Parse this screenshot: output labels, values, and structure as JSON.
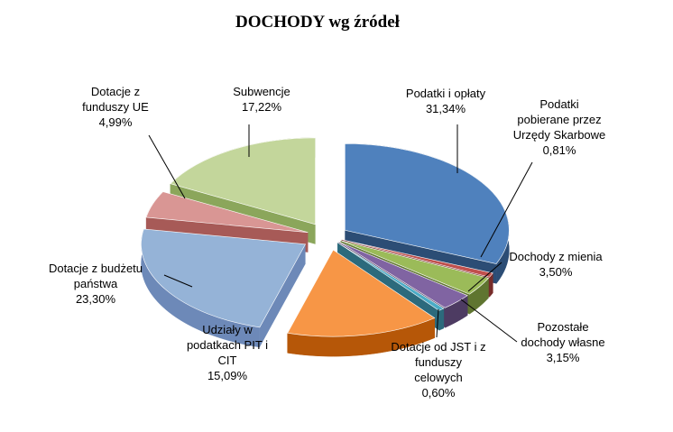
{
  "chart_data": {
    "type": "pie",
    "title": "DOCHODY wg źródeł",
    "categories": [
      "Podatki i opłaty",
      "Podatki pobierane przez Urzędy Skarbowe",
      "Dochody z mienia",
      "Pozostałe dochody własne",
      "Dotacje od JST i z funduszy celowych",
      "Udziały w podatkach PIT i CIT",
      "Dotacje z budżetu państwa",
      "Dotacje z funduszy UE",
      "Subwencje"
    ],
    "values": [
      31.34,
      0.81,
      3.5,
      3.15,
      0.6,
      15.09,
      23.3,
      4.99,
      17.22
    ],
    "value_labels": [
      "31,34%",
      "0,81%",
      "3,50%",
      "3,15%",
      "0,60%",
      "15,09%",
      "23,30%",
      "4,99%",
      "17,22%"
    ],
    "colors": [
      "#4f81bd",
      "#c0504d",
      "#9bbb59",
      "#8064a2",
      "#4bacc6",
      "#f79646",
      "#95b3d7",
      "#d99694",
      "#c3d69b"
    ],
    "side_colors": [
      "#2c4d75",
      "#772c2a",
      "#5f7530",
      "#4d3b62",
      "#2c6a7c",
      "#b65708",
      "#6d89b8",
      "#a75a57",
      "#8ba65b"
    ],
    "label_lines": [
      [
        "Podatki i opłaty",
        "31,34%"
      ],
      [
        "Podatki",
        "pobierane przez",
        "Urzędy Skarbowe",
        "0,81%"
      ],
      [
        "Dochody z mienia",
        "3,50%"
      ],
      [
        "Pozostałe",
        "dochody własne",
        "3,15%"
      ],
      [
        "Dotacje od JST i z",
        "funduszy",
        "celowych",
        "0,60%"
      ],
      [
        "Udziały w",
        "podatkach PIT i",
        "CIT",
        "15,09%"
      ],
      [
        "Dotacje z budżetu",
        "państwa",
        "23,30%"
      ],
      [
        "Dotacje z",
        "funduszy UE",
        "4,99%"
      ],
      [
        "Subwencje",
        "17,22%"
      ]
    ],
    "legend": "none",
    "style": "exploded-3d-pie"
  }
}
